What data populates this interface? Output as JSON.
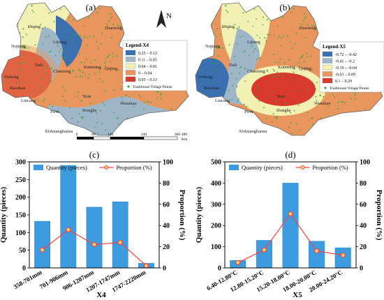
{
  "colors": {
    "x4": [
      "#3a6fb0",
      "#9fb6c8",
      "#f3f0b4",
      "#e9965e",
      "#d9392c"
    ],
    "x5": [
      "#3a6fb0",
      "#9fb6c8",
      "#f3f0b4",
      "#e9965e",
      "#d9392c"
    ],
    "bar": "#3d9be0",
    "line": "#ff4040",
    "marker": "#ff4040"
  },
  "maps": [
    {
      "panel_label": "(a)",
      "north_label": "N",
      "legend_title": "Legend-X4",
      "legend_items": [
        "0.25 – 0.12",
        "0.11 – 0.05",
        "0.04 – 0.01",
        "0 – 0.04",
        "0.05 – 0.13"
      ],
      "points_label": "Traditional Village Points",
      "scale_ticks": [
        "0",
        "60",
        "120",
        "240",
        "360",
        "480"
      ],
      "scale_unit": "Km",
      "places": [
        "Diqing",
        "Nujiang",
        "Lijiang",
        "Zhaotong",
        "Dali",
        "Qujing",
        "Chuxiong",
        "Kunming",
        "Baoshan",
        "Dehong",
        "Lincang",
        "Yuxi",
        "Pu'er",
        "Honghe",
        "Wenshan",
        "Xishuangbanna"
      ]
    },
    {
      "panel_label": "(b)",
      "legend_title": "Legend-X5",
      "legend_items": [
        "-0.72 – -0.42",
        "-0.41 – -0.2",
        "-0.19 – -0.04",
        "-0.03 – 0.09",
        "0.1 – 0.29"
      ],
      "points_label": "Traditional Village Points",
      "places": [
        "Diqing",
        "Nujiang",
        "Lijiang",
        "Zhaotong",
        "Dali",
        "Qujing",
        "Chuxiong",
        "Kunming",
        "Baoshan",
        "Dehong",
        "Lincang",
        "Yuxi",
        "Pu'er",
        "Honghe",
        "Wenshan",
        "Xishuangbanna"
      ]
    }
  ],
  "chart_data": [
    {
      "type": "bar",
      "panel_label": "(c)",
      "categories": [
        "358-701mm",
        "701-906mm",
        "906-1207mm",
        "1207-1747mm",
        "1747-2220mm"
      ],
      "series": [
        {
          "name": "Quantity (pieces)",
          "type": "bar",
          "axis": "left",
          "values": [
            132,
            290,
            172,
            187,
            13
          ]
        },
        {
          "name": "Proportion (%)",
          "type": "line",
          "axis": "right",
          "values": [
            17,
            36,
            22,
            24,
            2
          ]
        }
      ],
      "xlabel": "X4",
      "ylabel_left": "Quantity (pieces)",
      "ylabel_right": "Proportion (%)",
      "ylim_left": [
        0,
        300
      ],
      "ylim_right": [
        0,
        100
      ],
      "yticks_left": [
        "0",
        "50",
        "100",
        "150",
        "200",
        "250",
        "300"
      ],
      "yticks_right": [
        "0",
        "20",
        "40",
        "60",
        "80",
        "100"
      ]
    },
    {
      "type": "bar",
      "panel_label": "(d)",
      "categories": [
        "6.40-12.80°C",
        "12.80-15.20°C",
        "15.20-18.00°C",
        "18.00-20.00°C",
        "20.00-24.20°C"
      ],
      "series": [
        {
          "name": "Quantity (pieces)",
          "type": "bar",
          "axis": "left",
          "values": [
            35,
            130,
            400,
            126,
            95
          ]
        },
        {
          "name": "Proportion (%)",
          "type": "line",
          "axis": "right",
          "values": [
            5,
            17,
            51,
            16,
            12
          ]
        }
      ],
      "xlabel": "X5",
      "ylabel_left": "Quantity (pieces)",
      "ylabel_right": "Proportion (%)",
      "ylim_left": [
        0,
        500
      ],
      "ylim_right": [
        0,
        100
      ],
      "yticks_left": [
        "0",
        "100",
        "200",
        "300",
        "400",
        "500"
      ],
      "yticks_right": [
        "0",
        "20",
        "40",
        "60",
        "80",
        "100"
      ]
    }
  ]
}
